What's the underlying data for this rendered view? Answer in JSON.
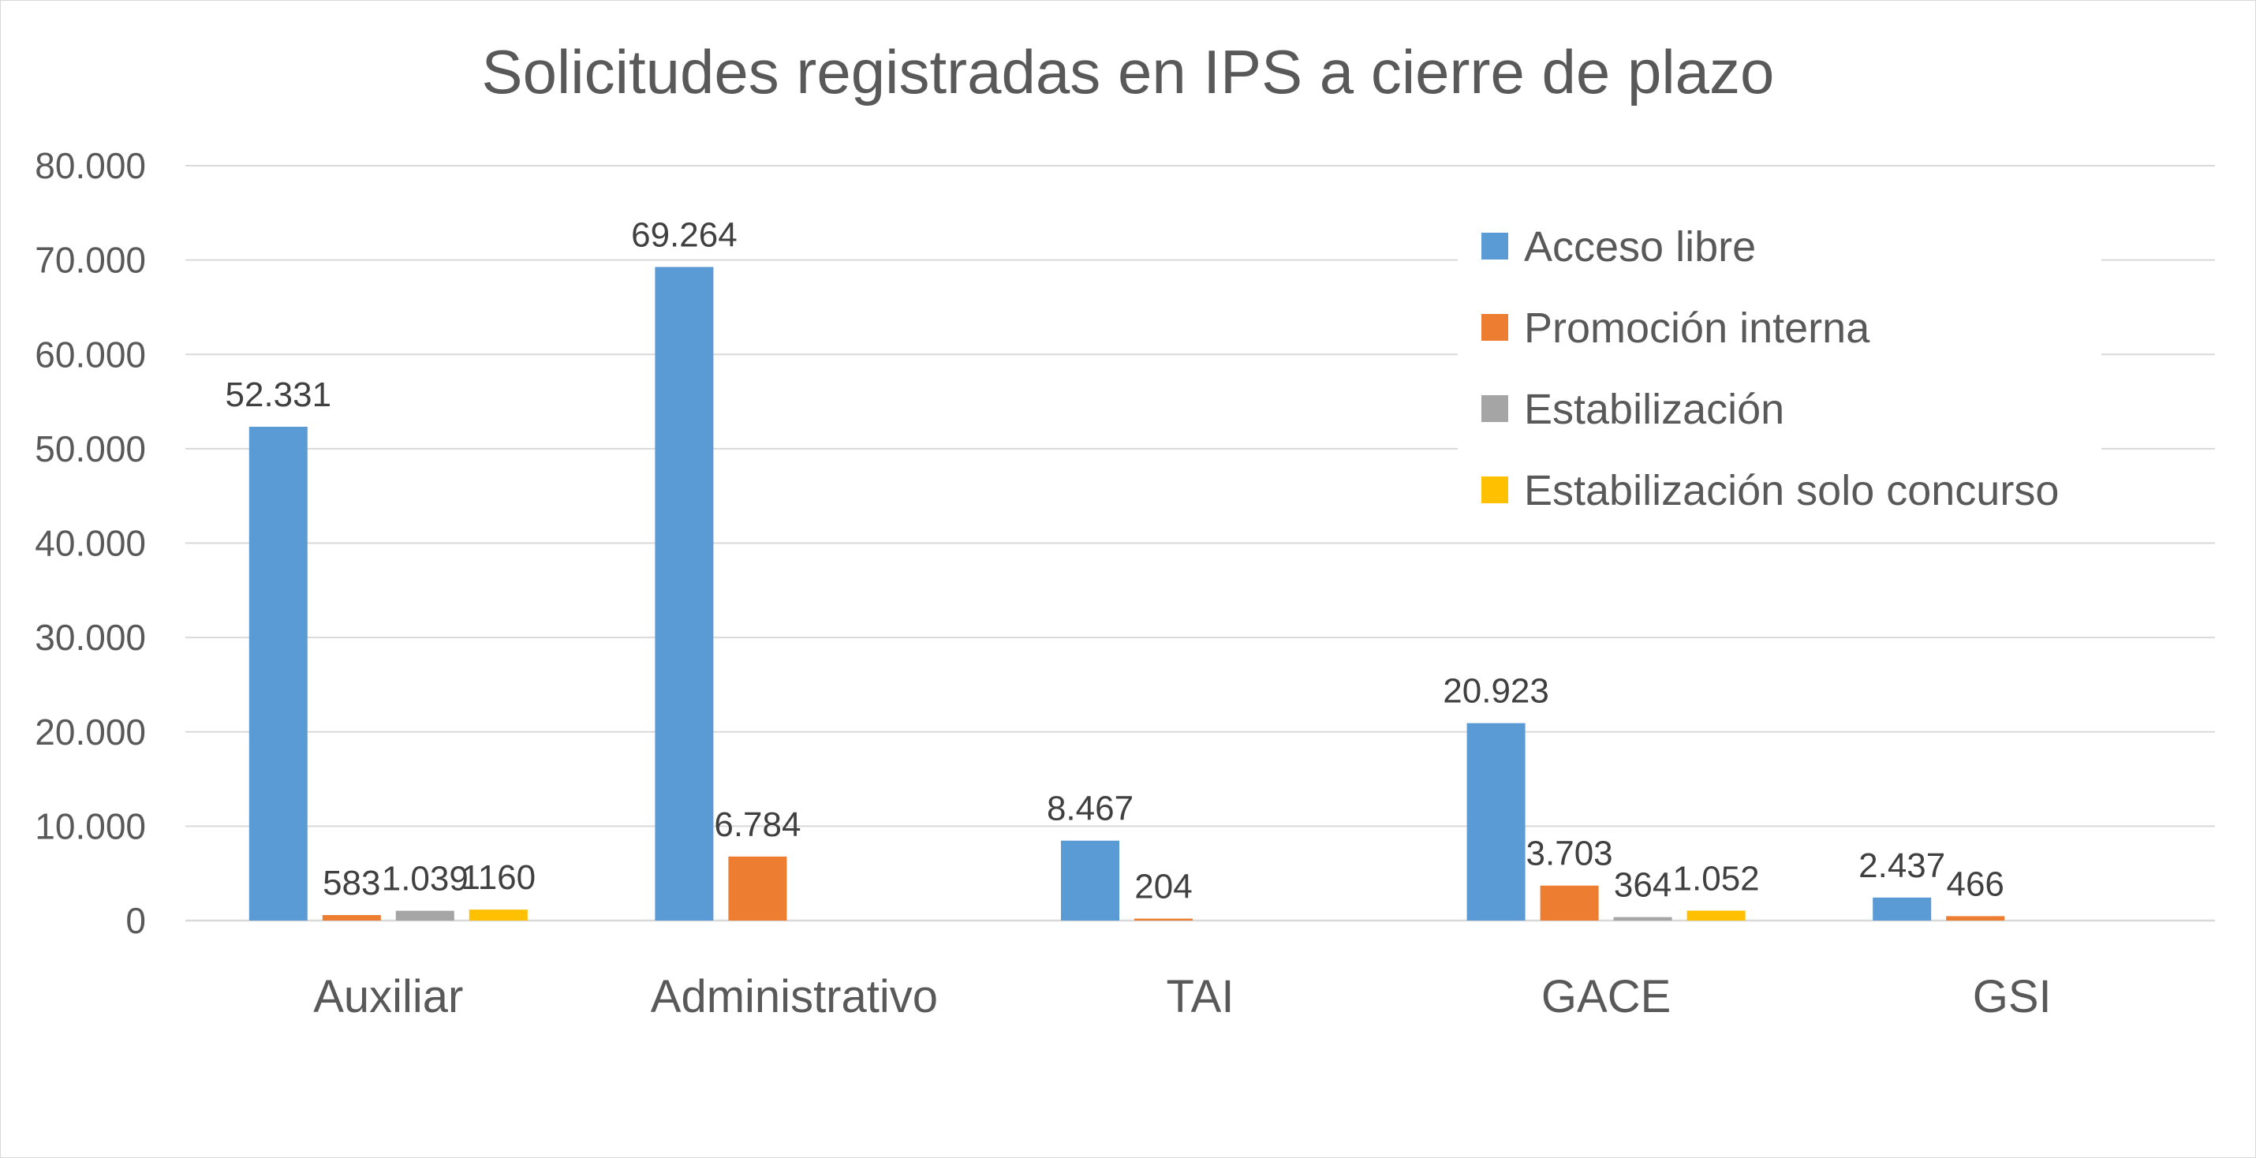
{
  "chart_data": {
    "type": "bar",
    "title": "Solicitudes registradas en IPS a cierre de plazo",
    "xlabel": "",
    "ylabel": "",
    "categories": [
      "Auxiliar",
      "Administrativo",
      "TAI",
      "GACE",
      "GSI"
    ],
    "ylim": [
      0,
      80000
    ],
    "yticks": [
      0,
      10000,
      20000,
      30000,
      40000,
      50000,
      60000,
      70000,
      80000
    ],
    "ytick_labels": [
      "0",
      "10.000",
      "20.000",
      "30.000",
      "40.000",
      "50.000",
      "60.000",
      "70.000",
      "80.000"
    ],
    "grid": true,
    "legend_position": "top-right",
    "series": [
      {
        "name": "Acceso libre",
        "color": "#5B9BD5",
        "values": [
          52331,
          69264,
          8467,
          20923,
          2437
        ],
        "labels": [
          "52.331",
          "69.264",
          "8.467",
          "20.923",
          "2.437"
        ]
      },
      {
        "name": "Promoción interna",
        "color": "#ED7D31",
        "values": [
          583,
          6784,
          204,
          3703,
          466
        ],
        "labels": [
          "583",
          "6.784",
          "204",
          "3.703",
          "466"
        ]
      },
      {
        "name": "Estabilización",
        "color": "#A5A5A5",
        "values": [
          1039,
          null,
          null,
          364,
          null
        ],
        "labels": [
          "1.039",
          null,
          null,
          "364",
          null
        ]
      },
      {
        "name": "Estabilización solo concurso",
        "color": "#FFC000",
        "values": [
          1160,
          null,
          null,
          1052,
          null
        ],
        "labels": [
          "1160",
          null,
          null,
          "1.052",
          null
        ]
      }
    ]
  }
}
